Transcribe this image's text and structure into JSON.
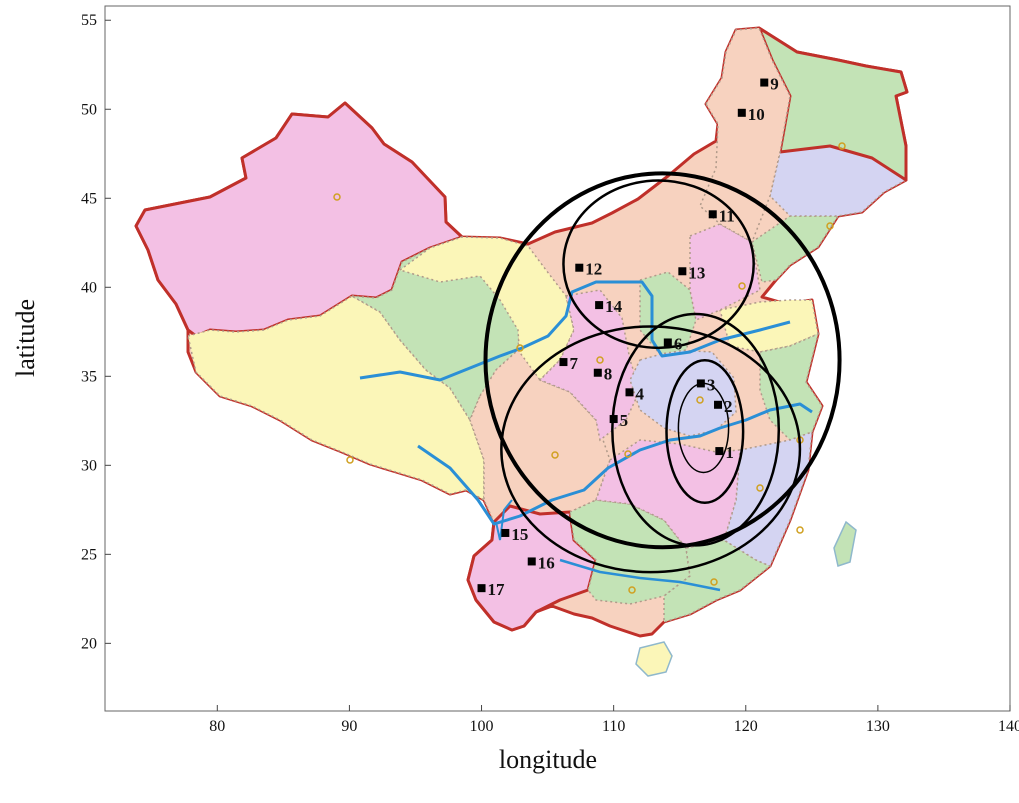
{
  "chart_data": {
    "type": "scatter",
    "title": "",
    "xlabel": "longitude",
    "ylabel": "latitude",
    "xlim": [
      71.5,
      140
    ],
    "ylim": [
      16.2,
      55.8
    ],
    "x_ticks": [
      "80",
      "90",
      "100",
      "110",
      "120",
      "130",
      "140"
    ],
    "y_ticks": [
      "20",
      "25",
      "30",
      "35",
      "40",
      "45",
      "50",
      "55"
    ],
    "background": "map of China with provincial divisions",
    "points": [
      {
        "label": "1",
        "lon": 118.0,
        "lat": 30.8
      },
      {
        "label": "2",
        "lon": 117.9,
        "lat": 33.4
      },
      {
        "label": "3",
        "lon": 116.6,
        "lat": 34.6
      },
      {
        "label": "4",
        "lon": 111.2,
        "lat": 34.1
      },
      {
        "label": "5",
        "lon": 110.0,
        "lat": 32.6
      },
      {
        "label": "6",
        "lon": 114.1,
        "lat": 36.9
      },
      {
        "label": "7",
        "lon": 106.2,
        "lat": 35.8
      },
      {
        "label": "8",
        "lon": 108.8,
        "lat": 35.2
      },
      {
        "label": "9",
        "lon": 121.4,
        "lat": 51.5
      },
      {
        "label": "10",
        "lon": 119.7,
        "lat": 49.8
      },
      {
        "label": "11",
        "lon": 117.5,
        "lat": 44.1
      },
      {
        "label": "12",
        "lon": 107.4,
        "lat": 41.1
      },
      {
        "label": "13",
        "lon": 115.2,
        "lat": 40.9
      },
      {
        "label": "14",
        "lon": 108.9,
        "lat": 39.0
      },
      {
        "label": "15",
        "lon": 101.8,
        "lat": 26.2
      },
      {
        "label": "16",
        "lon": 103.8,
        "lat": 24.6
      },
      {
        "label": "17",
        "lon": 100.0,
        "lat": 23.1
      }
    ],
    "ellipses": [
      {
        "cx": 116.8,
        "cy": 32.1,
        "rx": 1.9,
        "ry": 2.5
      },
      {
        "cx": 116.9,
        "cy": 31.9,
        "rx": 2.9,
        "ry": 4.0
      },
      {
        "cx": 116.2,
        "cy": 32.0,
        "rx": 6.3,
        "ry": 6.5
      },
      {
        "cx": 112.8,
        "cy": 30.9,
        "rx": 11.3,
        "ry": 6.9
      },
      {
        "cx": 113.4,
        "cy": 41.3,
        "rx": 7.2,
        "ry": 4.7
      },
      {
        "cx": 113.7,
        "cy": 35.9,
        "rx": 13.4,
        "ry": 10.5,
        "thick": true
      }
    ],
    "colors": {
      "point": "#000000",
      "ellipse": "#000000",
      "border": "#c0302a",
      "river": "#2a8fd6",
      "region_pink": "#f3c0e4",
      "region_peach": "#f7d2bf",
      "region_yellow": "#fbf6b8",
      "region_green": "#c3e3b6",
      "region_lavender": "#d4d4f2"
    }
  }
}
